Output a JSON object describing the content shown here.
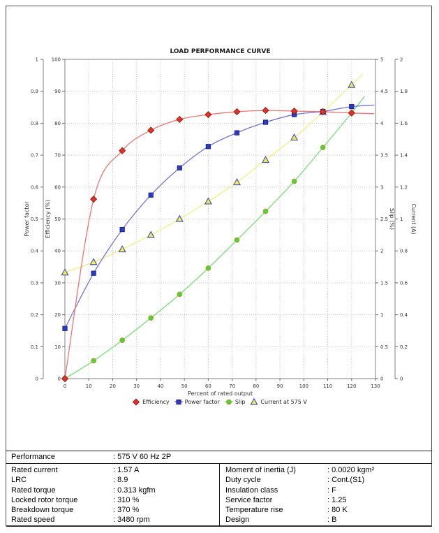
{
  "chart_data": {
    "type": "line",
    "title": "LOAD PERFORMANCE CURVE",
    "xlabel": "Percent of rated output",
    "xlim": [
      0,
      130
    ],
    "x": [
      0,
      12,
      24,
      36,
      48,
      60,
      72,
      84,
      96,
      108,
      120
    ],
    "grid": true,
    "legend_position": "bottom",
    "axes": {
      "left_outer": {
        "title": "Power factor",
        "min": 0,
        "max": 1,
        "step": 0.1
      },
      "left_inner": {
        "title": "Efficiency (%)",
        "min": 0,
        "max": 100,
        "step": 10
      },
      "right_inner": {
        "title": "Slip (%)",
        "min": 0,
        "max": 5,
        "step": 0.5
      },
      "right_outer": {
        "title": "Current (A)",
        "min": 0,
        "max": 2,
        "step": 0.2
      },
      "x_ticks": [
        "0",
        "10",
        "20",
        "30",
        "40",
        "50",
        "60",
        "70",
        "80",
        "90",
        "100",
        "110",
        "120",
        "130"
      ]
    },
    "series": [
      {
        "name": "Slip",
        "axis": "Slip (%)",
        "ymax": 5,
        "marker": "circle",
        "values": [
          0,
          0.28,
          0.6,
          0.95,
          1.32,
          1.73,
          2.17,
          2.62,
          3.09,
          3.62,
          4.16
        ],
        "line_end": {
          "x": 125.4,
          "y": 4.42
        },
        "line_color": "#72e072",
        "marker_fill": "#3fd93f",
        "marker_stroke": "#d09020"
      },
      {
        "name": "Current at 575 V",
        "axis": "Current (A)",
        "ymax": 2,
        "marker": "triangle",
        "values": [
          0.665,
          0.73,
          0.81,
          0.9,
          1.0,
          1.11,
          1.23,
          1.37,
          1.51,
          1.67,
          1.84
        ],
        "line_end": {
          "x": 124.8,
          "y": 1.91
        },
        "line_color": "#f5ef7d",
        "marker_fill": "#f3ec4f",
        "marker_stroke": "#3d4fc4"
      },
      {
        "name": "Power factor",
        "axis": "Power factor",
        "ymax": 1,
        "marker": "square",
        "values": [
          0.157,
          0.33,
          0.467,
          0.575,
          0.66,
          0.727,
          0.77,
          0.803,
          0.827,
          0.837,
          0.852
        ],
        "line_end": {
          "x": 129.5,
          "y": 0.857
        },
        "line_color": "#7173dd",
        "marker_fill": "#2b3ac5",
        "marker_stroke": "#141c7a"
      },
      {
        "name": "Efficiency",
        "axis": "Efficiency (%)",
        "ymax": 100,
        "marker": "diamond",
        "values": [
          0,
          56.2,
          71.4,
          77.8,
          81.2,
          82.7,
          83.6,
          84.0,
          83.8,
          83.6,
          83.2
        ],
        "line_end": {
          "x": 129.5,
          "y": 83.0
        },
        "line_color": "#f07470",
        "marker_fill": "#e23228",
        "marker_stroke": "#8f130d"
      }
    ],
    "legend_order": [
      "Efficiency",
      "Power factor",
      "Slip",
      "Current at 575 V"
    ],
    "colors": {
      "grid": "#c8c8c8",
      "frame": "#808080",
      "tick_text": "#333333",
      "title_text": "#1a1a1a"
    }
  },
  "table": {
    "performance": {
      "label": "Performance",
      "value": ": 575 V 60 Hz 2P"
    },
    "left_rows": [
      {
        "label": "Rated current",
        "value": ": 1.57 A"
      },
      {
        "label": "LRC",
        "value": ": 8.9"
      },
      {
        "label": "Rated torque",
        "value": ": 0.313 kgfm"
      },
      {
        "label": "Locked rotor torque",
        "value": ": 310 %"
      },
      {
        "label": "Breakdown torque",
        "value": ": 370 %"
      },
      {
        "label": "Rated speed",
        "value": ": 3480 rpm"
      }
    ],
    "right_rows": [
      {
        "label": "Moment of inertia (J)",
        "value": ": 0.0020 kgm²"
      },
      {
        "label": "Duty cycle",
        "value": ": Cont.(S1)"
      },
      {
        "label": "Insulation class",
        "value": ": F"
      },
      {
        "label": "Service factor",
        "value": ": 1.25"
      },
      {
        "label": "Temperature rise",
        "value": ": 80 K"
      },
      {
        "label": "Design",
        "value": ": B"
      }
    ]
  }
}
